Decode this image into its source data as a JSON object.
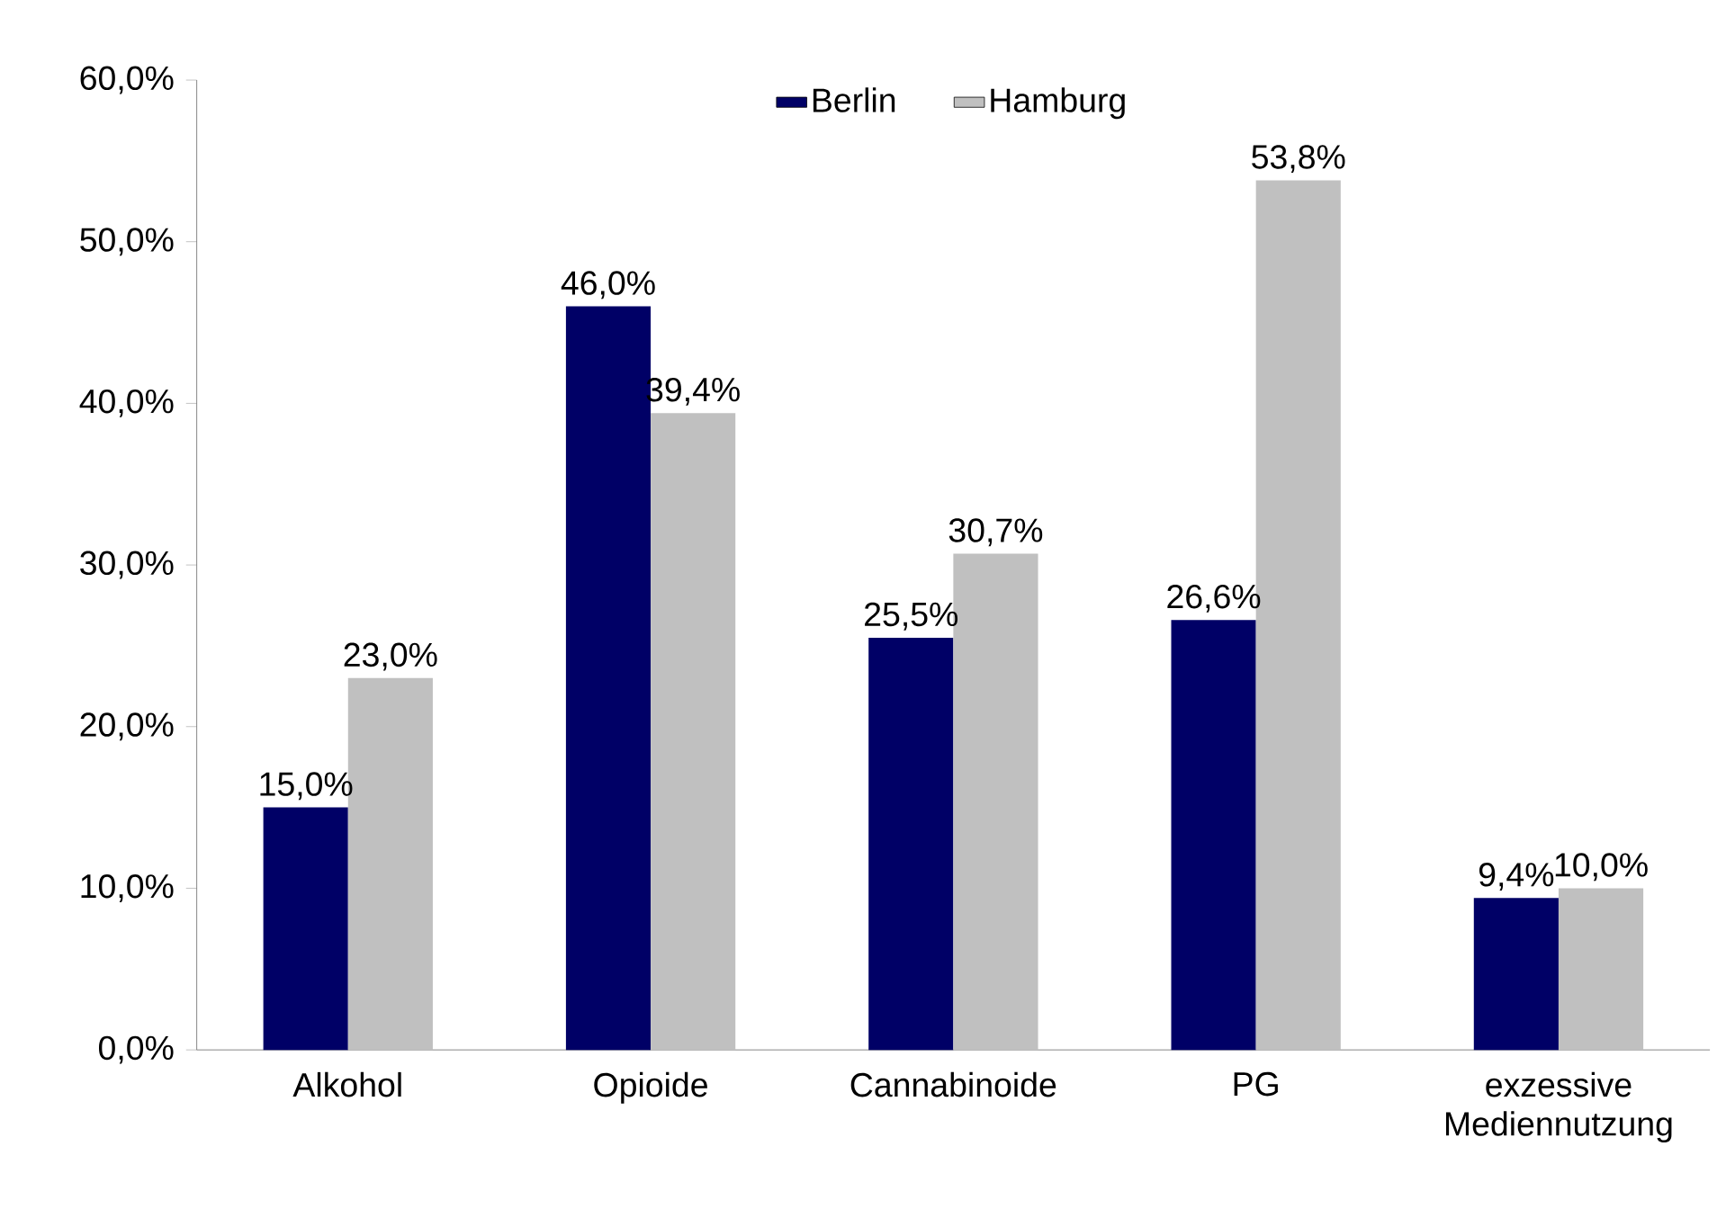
{
  "chart_data": {
    "type": "bar",
    "categories": [
      "Alkohol",
      "Opioide",
      "Cannabinoide",
      "PG",
      "exzessive Mediennutzung"
    ],
    "series": [
      {
        "name": "Berlin",
        "color": "#000066",
        "values": [
          15.0,
          46.0,
          25.5,
          26.6,
          9.4
        ],
        "value_labels": [
          "15,0%",
          "46,0%",
          "25,5%",
          "26,6%",
          "9,4%"
        ]
      },
      {
        "name": "Hamburg",
        "color": "#c0c0c0",
        "values": [
          23.0,
          39.4,
          30.7,
          53.8,
          10.0
        ],
        "value_labels": [
          "23,0%",
          "39,4%",
          "30,7%",
          "53,8%",
          "10,0%"
        ]
      }
    ],
    "ylim": [
      0,
      60
    ],
    "yticks": [
      {
        "value": 0,
        "label": "0,0%"
      },
      {
        "value": 10,
        "label": "10,0%"
      },
      {
        "value": 20,
        "label": "20,0%"
      },
      {
        "value": 30,
        "label": "30,0%"
      },
      {
        "value": 40,
        "label": "40,0%"
      },
      {
        "value": 50,
        "label": "50,0%"
      },
      {
        "value": 60,
        "label": "60,0%"
      }
    ],
    "grid": false,
    "legend": "top"
  }
}
